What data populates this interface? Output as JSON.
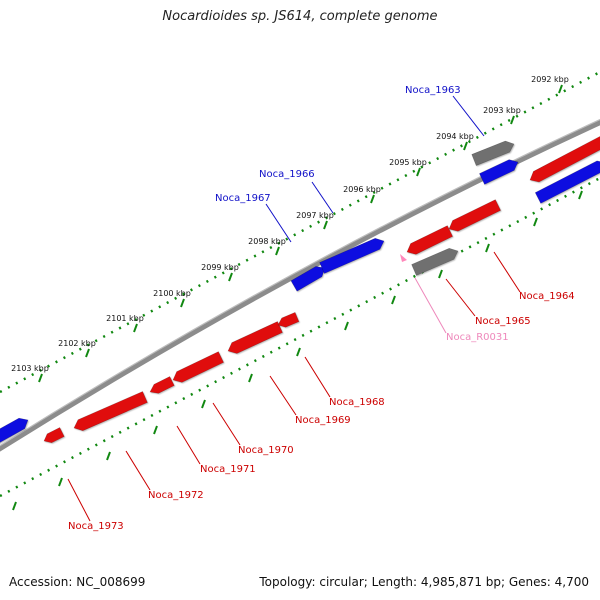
{
  "title": "Nocardioides sp. JS614, complete genome",
  "footer": {
    "accession": "Accession: NC_008699",
    "summary": "Topology: circular; Length: 4,985,871 bp; Genes: 4,700"
  },
  "colors": {
    "forward": "#1010e0",
    "reverse": "#e01010",
    "neutral": "#707070",
    "rna": "#ff88bb",
    "backbone": "#8c8c8c",
    "ticks": "#118811"
  },
  "scale": {
    "unit": "kbp",
    "labels": [
      "2092 kbp",
      "2093 kbp",
      "2094 kbp",
      "2095 kbp",
      "2096 kbp",
      "2097 kbp",
      "2098 kbp",
      "2099 kbp",
      "2100 kbp",
      "2101 kbp",
      "2102 kbp",
      "2103 kbp"
    ]
  },
  "genes": [
    {
      "name": "Noca_1963",
      "strand": "forward",
      "color": "#1010c8"
    },
    {
      "name": "Noca_1964",
      "strand": "reverse",
      "color": "#cc0000"
    },
    {
      "name": "Noca_1965",
      "strand": "reverse",
      "color": "#cc0000"
    },
    {
      "name": "Noca_R0031",
      "strand": "reverse",
      "color": "#ee88bb"
    },
    {
      "name": "Noca_1966",
      "strand": "forward",
      "color": "#1010c8"
    },
    {
      "name": "Noca_1967",
      "strand": "forward",
      "color": "#1010c8"
    },
    {
      "name": "Noca_1968",
      "strand": "reverse",
      "color": "#cc0000"
    },
    {
      "name": "Noca_1969",
      "strand": "reverse",
      "color": "#cc0000"
    },
    {
      "name": "Noca_1970",
      "strand": "reverse",
      "color": "#cc0000"
    },
    {
      "name": "Noca_1971",
      "strand": "reverse",
      "color": "#cc0000"
    },
    {
      "name": "Noca_1972",
      "strand": "reverse",
      "color": "#cc0000"
    },
    {
      "name": "Noca_1973",
      "strand": "reverse",
      "color": "#cc0000"
    }
  ]
}
